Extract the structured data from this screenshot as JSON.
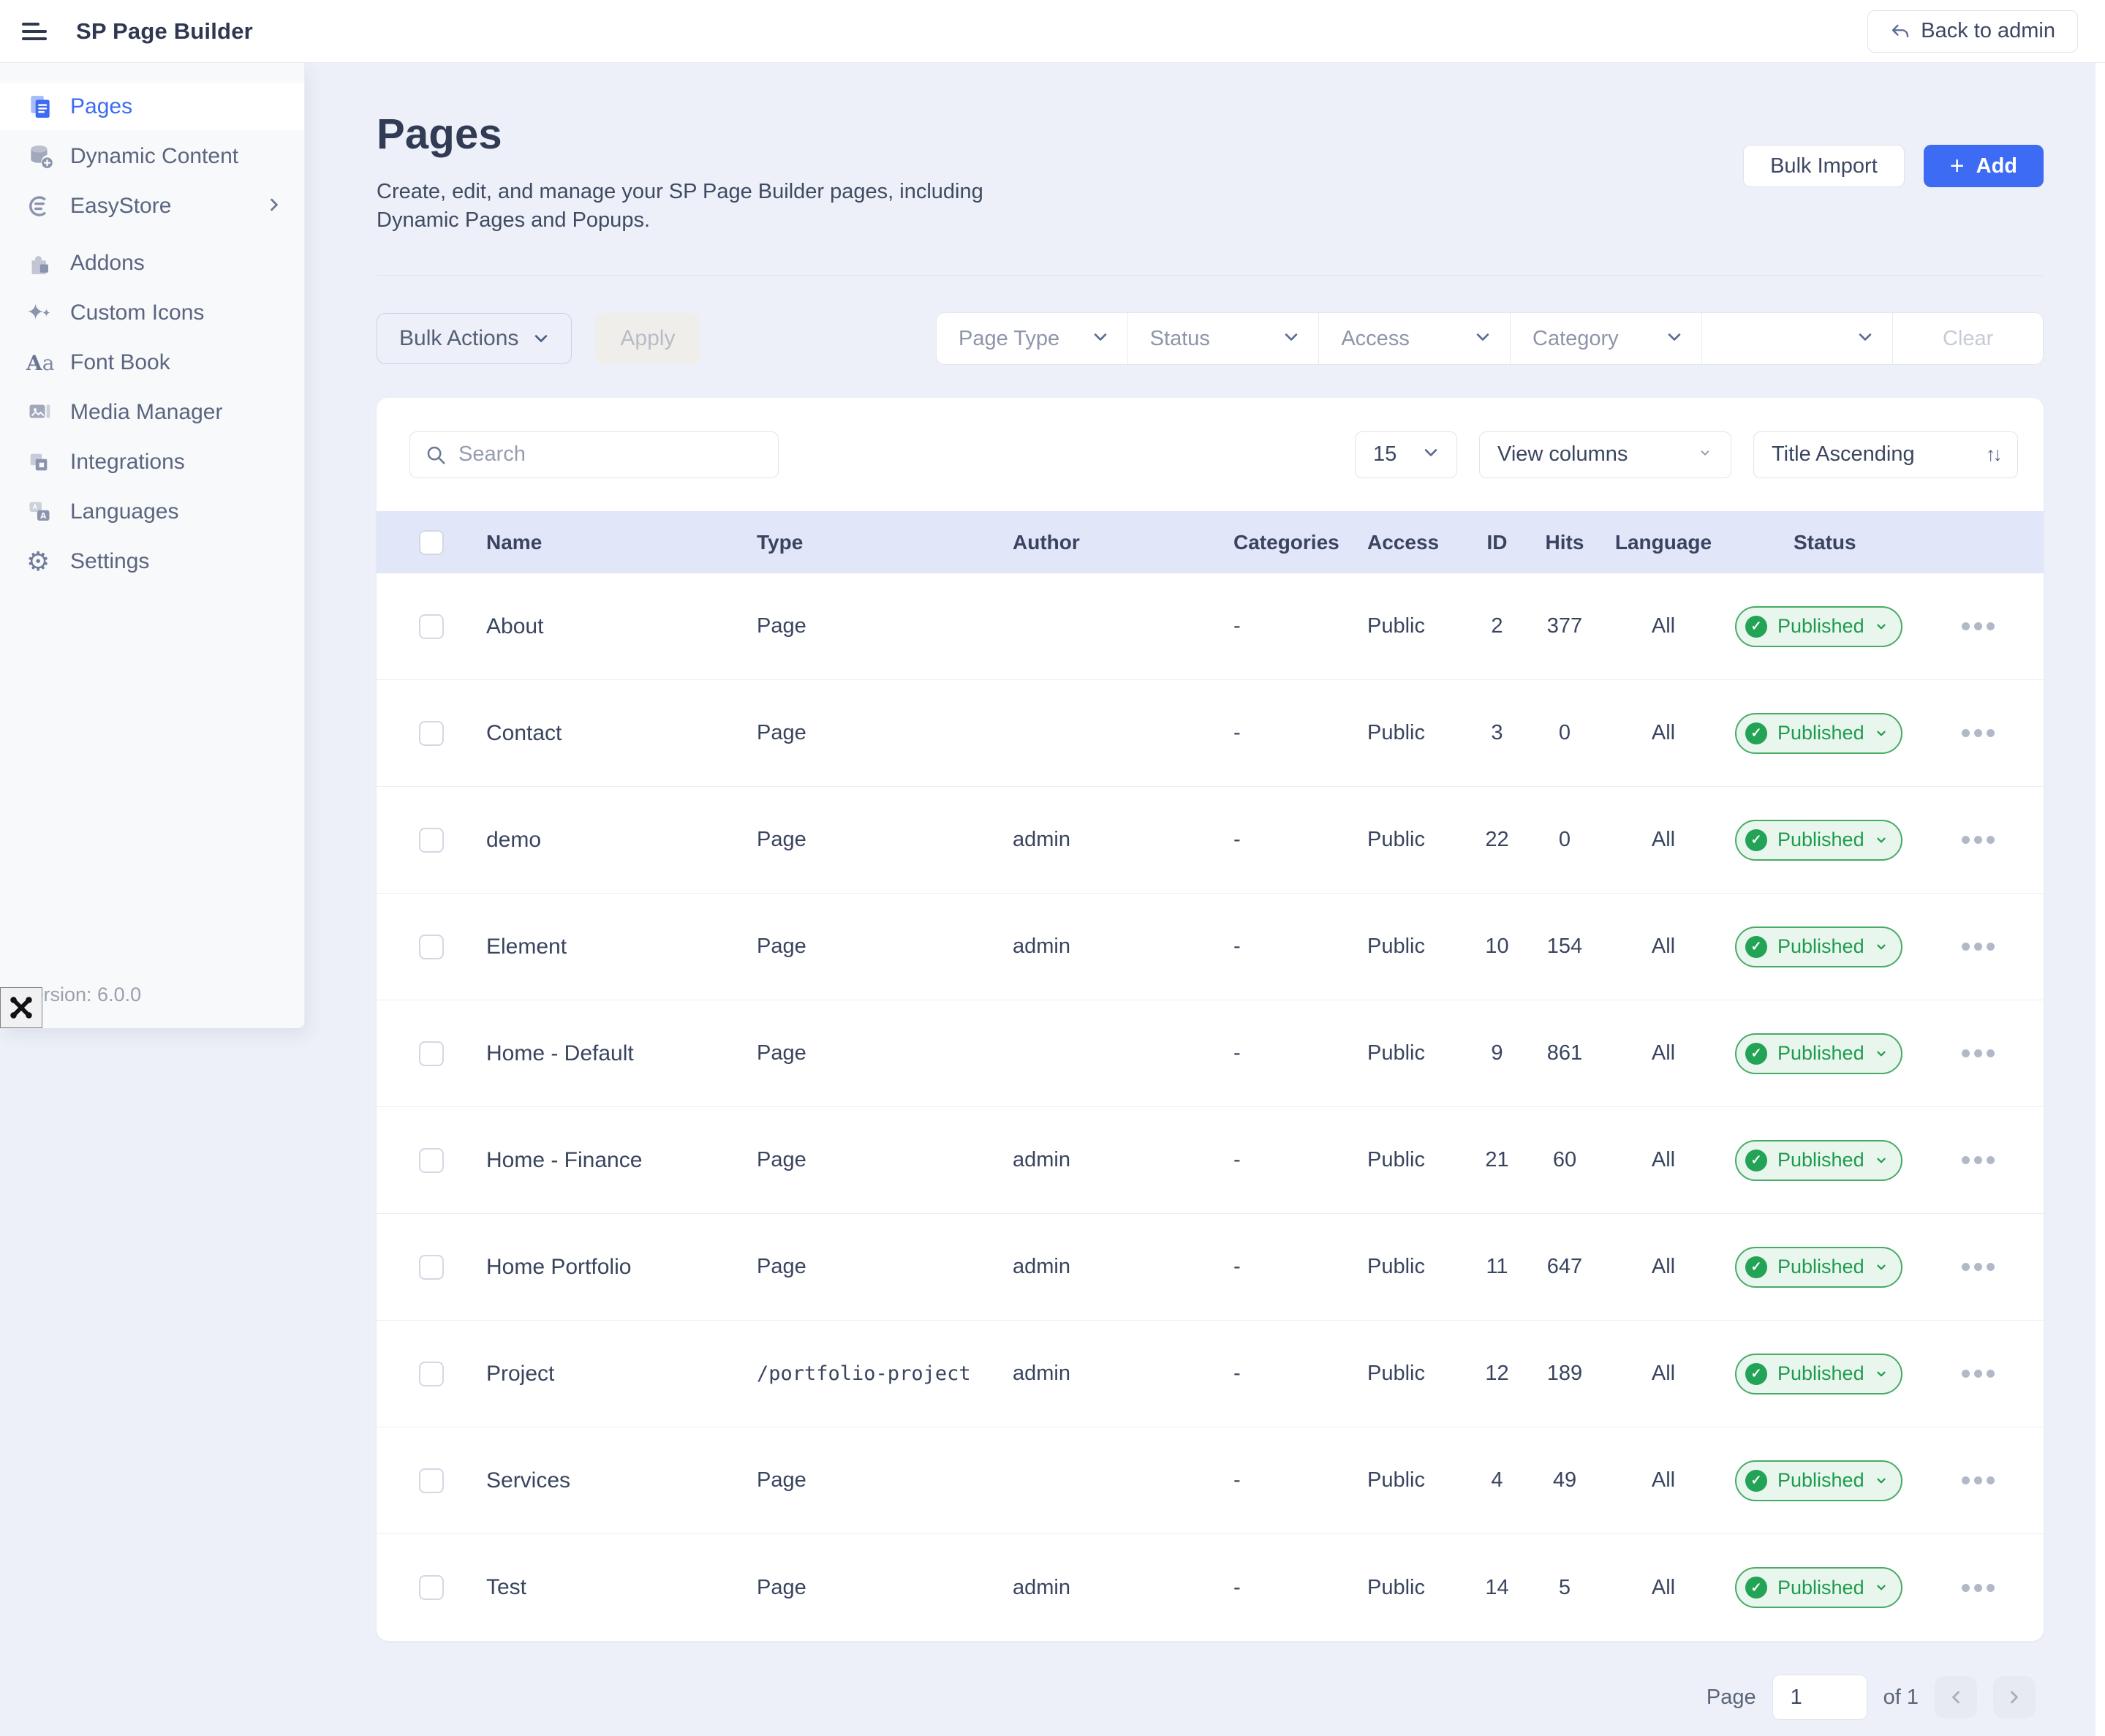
{
  "topbar": {
    "title": "SP Page Builder",
    "back_button": "Back to admin"
  },
  "sidebar": {
    "items": [
      {
        "label": "Pages",
        "active": true
      },
      {
        "label": "Dynamic Content"
      },
      {
        "label": "EasyStore",
        "has_submenu": true
      },
      {
        "label": "Addons"
      },
      {
        "label": "Custom Icons"
      },
      {
        "label": "Font Book"
      },
      {
        "label": "Media Manager"
      },
      {
        "label": "Integrations"
      },
      {
        "label": "Languages"
      },
      {
        "label": "Settings"
      }
    ],
    "version": "Version: 6.0.0"
  },
  "header": {
    "title": "Pages",
    "description": "Create, edit, and manage your SP Page Builder pages, including Dynamic Pages and Popups.",
    "bulk_import_label": "Bulk Import",
    "add_label": "Add"
  },
  "filters": {
    "bulk_actions_label": "Bulk Actions",
    "apply_label": "Apply",
    "dropdowns": [
      "Page Type",
      "Status",
      "Access",
      "Category",
      ""
    ],
    "clear_label": "Clear"
  },
  "toolbar": {
    "search_placeholder": "Search",
    "per_page": "15",
    "view_columns_label": "View columns",
    "sort_label": "Title Ascending"
  },
  "table": {
    "columns": [
      "Name",
      "Type",
      "Author",
      "Categories",
      "Access",
      "ID",
      "Hits",
      "Language",
      "Status"
    ],
    "rows": [
      {
        "name": "About",
        "type": "Page",
        "mono": false,
        "author": "",
        "categories": "-",
        "access": "Public",
        "id": "2",
        "hits": "377",
        "language": "All",
        "status": "Published"
      },
      {
        "name": "Contact",
        "type": "Page",
        "mono": false,
        "author": "",
        "categories": "-",
        "access": "Public",
        "id": "3",
        "hits": "0",
        "language": "All",
        "status": "Published"
      },
      {
        "name": "demo",
        "type": "Page",
        "mono": false,
        "author": "admin",
        "categories": "-",
        "access": "Public",
        "id": "22",
        "hits": "0",
        "language": "All",
        "status": "Published"
      },
      {
        "name": "Element",
        "type": "Page",
        "mono": false,
        "author": "admin",
        "categories": "-",
        "access": "Public",
        "id": "10",
        "hits": "154",
        "language": "All",
        "status": "Published"
      },
      {
        "name": "Home - Default",
        "type": "Page",
        "mono": false,
        "author": "",
        "categories": "-",
        "access": "Public",
        "id": "9",
        "hits": "861",
        "language": "All",
        "status": "Published"
      },
      {
        "name": "Home - Finance",
        "type": "Page",
        "mono": false,
        "author": "admin",
        "categories": "-",
        "access": "Public",
        "id": "21",
        "hits": "60",
        "language": "All",
        "status": "Published"
      },
      {
        "name": "Home Portfolio",
        "type": "Page",
        "mono": false,
        "author": "admin",
        "categories": "-",
        "access": "Public",
        "id": "11",
        "hits": "647",
        "language": "All",
        "status": "Published"
      },
      {
        "name": "Project",
        "type": "/portfolio-project",
        "mono": true,
        "author": "admin",
        "categories": "-",
        "access": "Public",
        "id": "12",
        "hits": "189",
        "language": "All",
        "status": "Published"
      },
      {
        "name": "Services",
        "type": "Page",
        "mono": false,
        "author": "",
        "categories": "-",
        "access": "Public",
        "id": "4",
        "hits": "49",
        "language": "All",
        "status": "Published"
      },
      {
        "name": "Test",
        "type": "Page",
        "mono": false,
        "author": "admin",
        "categories": "-",
        "access": "Public",
        "id": "14",
        "hits": "5",
        "language": "All",
        "status": "Published"
      }
    ]
  },
  "pagination": {
    "page_label": "Page",
    "current_page": "1",
    "of_label": "of 1"
  },
  "colors": {
    "accent_blue": "#3d6bf3",
    "published_green": "#1d9b4c",
    "published_bg": "#e9f6ee",
    "table_header_bg": "#e1e6f9",
    "page_bg": "#edf0f8"
  }
}
